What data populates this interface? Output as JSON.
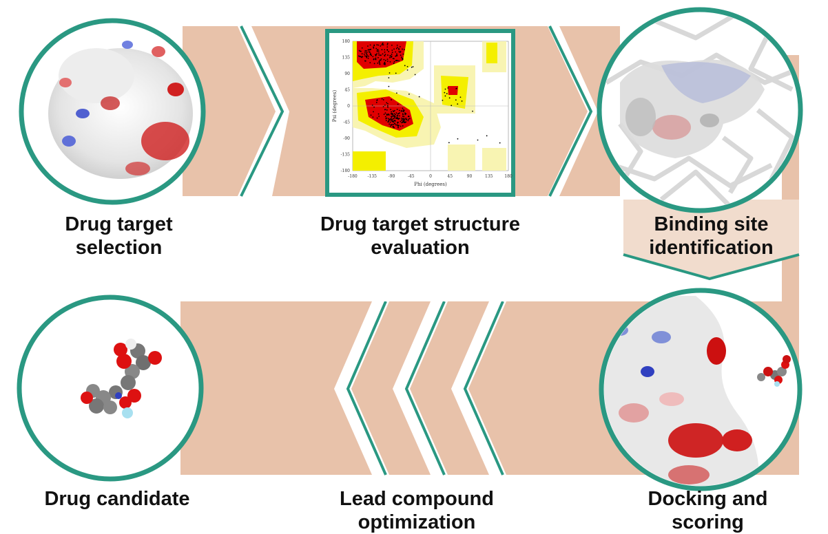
{
  "colors": {
    "band": "#e8c2aa",
    "accent": "#2a9882",
    "plot_red": "#e00000",
    "plot_yellow": "#f4ef00",
    "plot_pale": "#f8f4b2"
  },
  "steps": [
    {
      "line1": "Drug target",
      "line2": "selection"
    },
    {
      "line1": "Drug target structure",
      "line2": "evaluation"
    },
    {
      "line1": "Binding site",
      "line2": "identification"
    },
    {
      "line1": "Docking and",
      "line2": "scoring"
    },
    {
      "line1": "Lead compound",
      "line2": "optimization"
    },
    {
      "line1": "Drug candidate",
      "line2": ""
    }
  ],
  "ramachandran": {
    "xlabel": "Phi (degrees)",
    "ylabel": "Psi (degrees)",
    "x_ticks": [
      "-180",
      "-135",
      "-90",
      "-45",
      "0",
      "45",
      "90",
      "135",
      "180"
    ],
    "y_ticks": [
      "180",
      "135",
      "90",
      "45",
      "0",
      "-45",
      "-90",
      "-135",
      "-180"
    ]
  }
}
